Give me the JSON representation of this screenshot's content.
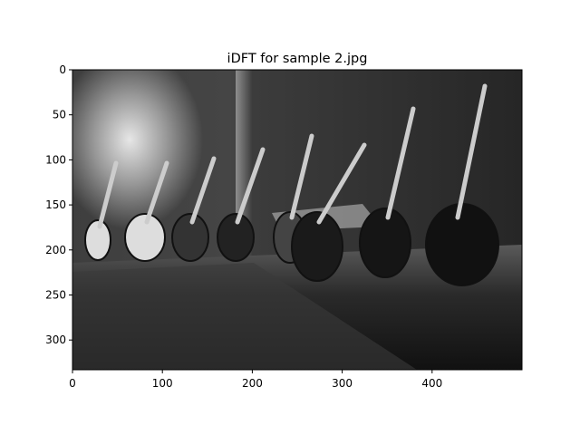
{
  "chart_data": {
    "type": "image",
    "title": "iDFT for sample 2.jpg",
    "xlim": [
      0,
      500
    ],
    "ylim": [
      333,
      0
    ],
    "xticks": [
      0,
      100,
      200,
      300,
      400
    ],
    "yticks": [
      0,
      50,
      100,
      150,
      200,
      250,
      300
    ]
  }
}
